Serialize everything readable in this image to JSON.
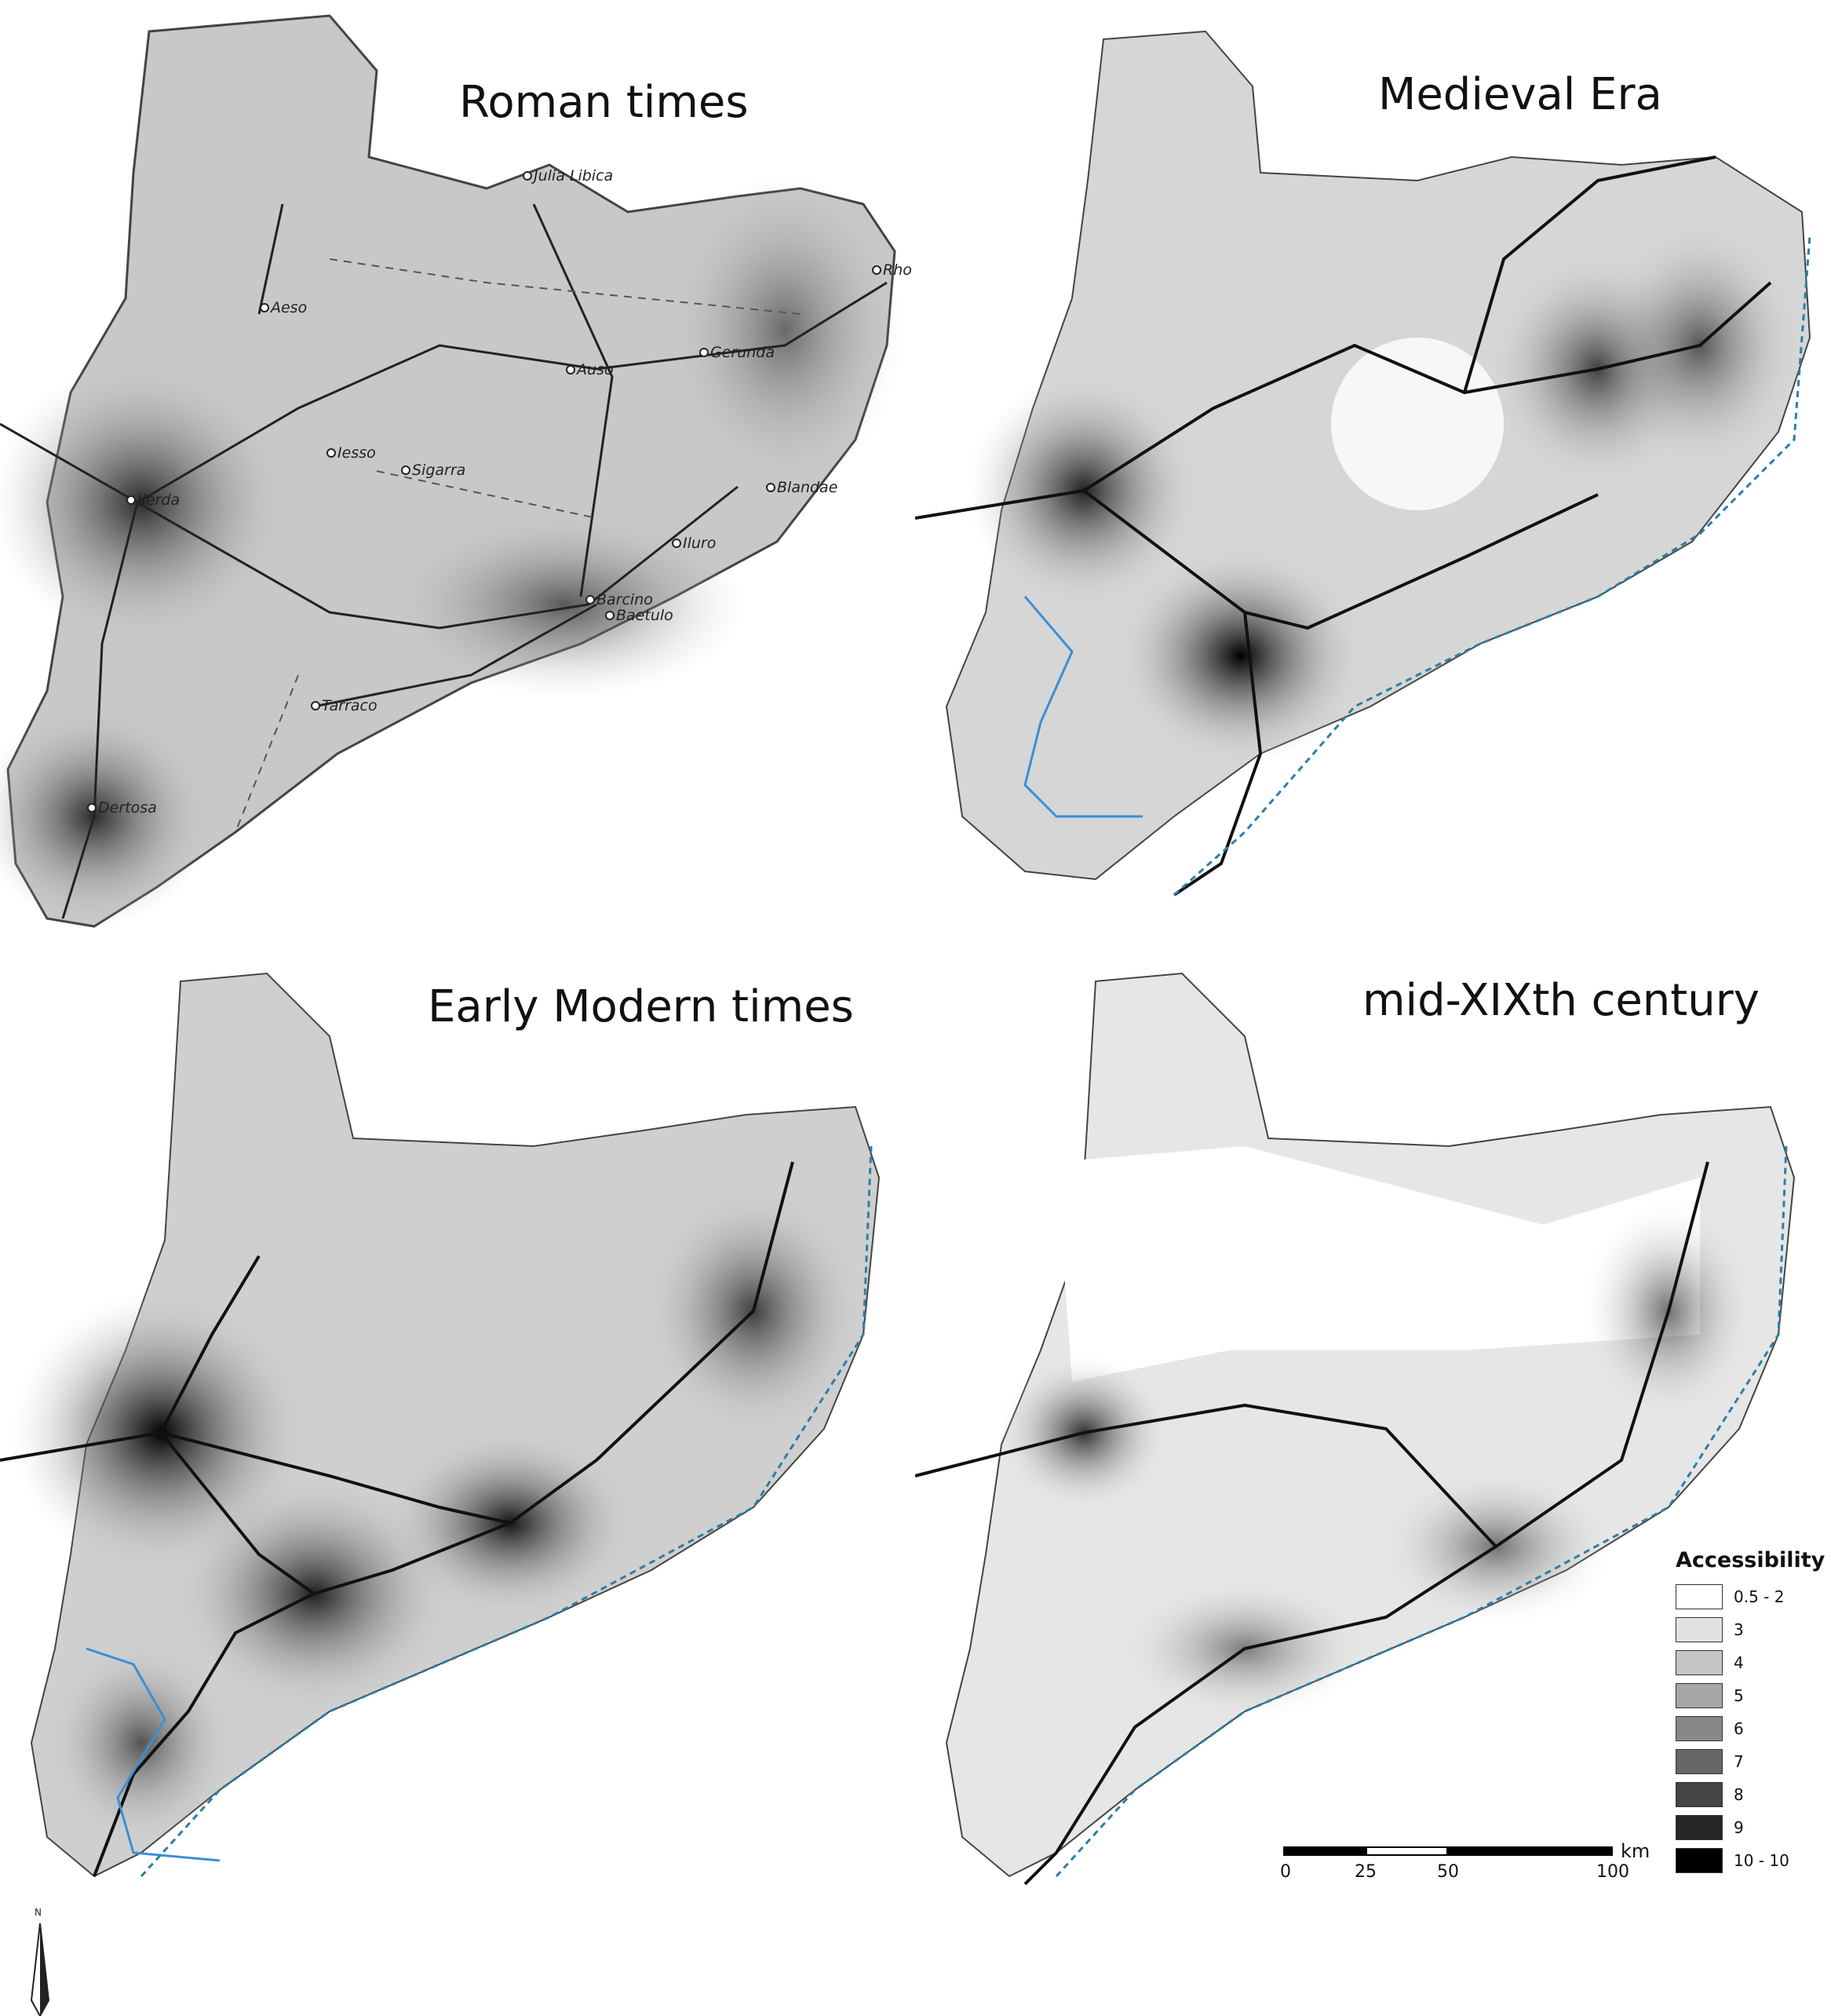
{
  "panels": [
    {
      "title": "Roman times",
      "tone": "#c8c8c8",
      "dark": "#4a4a4a"
    },
    {
      "title": "Medieval Era",
      "tone": "#d6d6d6",
      "dark": "#303030"
    },
    {
      "title": "Early Modern times",
      "tone": "#cfcfcf",
      "dark": "#1e1e1e"
    },
    {
      "title": "mid-XIXth century",
      "tone": "#e6e6e6",
      "dark": "#3a3a3a"
    }
  ],
  "places": {
    "roman": [
      "Julia Libica",
      "Aeso",
      "Rho",
      "Gerunda",
      "Auso",
      "Iesso",
      "Sigarra",
      "Ilerda",
      "Blandae",
      "Iluro",
      "Baetulo",
      "Barcino",
      "Tarraco",
      "Dertosa"
    ]
  },
  "legend": {
    "title": "Accessibility",
    "items": [
      {
        "label": "0.5 - 2",
        "color": "#ffffff"
      },
      {
        "label": "3",
        "color": "#e2e2e2"
      },
      {
        "label": "4",
        "color": "#c4c4c4"
      },
      {
        "label": "5",
        "color": "#a6a6a6"
      },
      {
        "label": "6",
        "color": "#888888"
      },
      {
        "label": "7",
        "color": "#666666"
      },
      {
        "label": "8",
        "color": "#444444"
      },
      {
        "label": "9",
        "color": "#262626"
      },
      {
        "label": "10 - 10",
        "color": "#000000"
      }
    ]
  },
  "scale": {
    "ticks": [
      "0",
      "25",
      "50",
      "100"
    ],
    "unit": "km"
  },
  "north": "N",
  "colors": {
    "road": "#111111",
    "river": "#3a8fd6",
    "coast": "#2a7fa8",
    "border": "#444444"
  }
}
